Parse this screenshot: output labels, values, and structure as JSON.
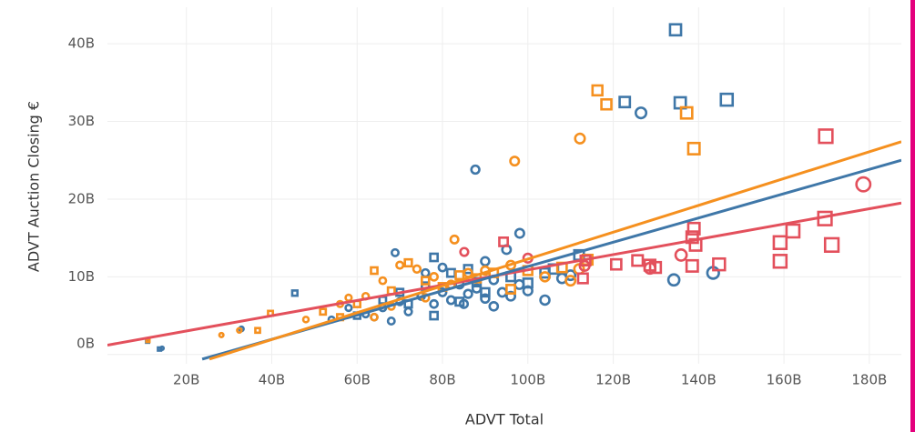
{
  "chart_data": {
    "type": "scatter",
    "x_label": "ADVT Total",
    "y_label": "ADVT Auction Closing €",
    "xlim": [
      1.5,
      187.5
    ],
    "ylim": [
      -1.2,
      44.7
    ],
    "xticks": [
      {
        "value": 20,
        "label": "20B"
      },
      {
        "value": 40,
        "label": "40B"
      },
      {
        "value": 60,
        "label": "60B"
      },
      {
        "value": 80,
        "label": "80B"
      },
      {
        "value": 100,
        "label": "100B"
      },
      {
        "value": 120,
        "label": "120B"
      },
      {
        "value": 140,
        "label": "140B"
      },
      {
        "value": 160,
        "label": "160B"
      },
      {
        "value": 180,
        "label": "180B"
      }
    ],
    "yticks": [
      {
        "value": 0,
        "label": "0B"
      },
      {
        "value": 10,
        "label": "10B"
      },
      {
        "value": 20,
        "label": "20B"
      },
      {
        "value": 30,
        "label": "30B"
      },
      {
        "value": 40,
        "label": "40B"
      }
    ],
    "grid": true,
    "series": [
      {
        "color": "#3f77a8",
        "marker": "circle",
        "values": [
          [
            126.5,
            31.1
          ],
          [
            87.7,
            23.8
          ],
          [
            98.1,
            15.6
          ],
          [
            68.9,
            13.1
          ],
          [
            134.2,
            9.6
          ],
          [
            143.4,
            10.5
          ],
          [
            14.3,
            0.8
          ],
          [
            32.9,
            3.3
          ],
          [
            62,
            5.2
          ],
          [
            66,
            6
          ],
          [
            70,
            6.8
          ],
          [
            72,
            5.5
          ],
          [
            75,
            7.5
          ],
          [
            78,
            6.5
          ],
          [
            80,
            8
          ],
          [
            82,
            7
          ],
          [
            84,
            9
          ],
          [
            86,
            7.8
          ],
          [
            88,
            8.5
          ],
          [
            90,
            7.2
          ],
          [
            92,
            9.6
          ],
          [
            94,
            8
          ],
          [
            96,
            7.5
          ],
          [
            98,
            9
          ],
          [
            100,
            8.2
          ],
          [
            104,
            7
          ],
          [
            108,
            9.8
          ],
          [
            110,
            10.2
          ],
          [
            64,
            4.8
          ],
          [
            58,
            6
          ],
          [
            54,
            4.5
          ],
          [
            76,
            10.5
          ],
          [
            80,
            11.2
          ],
          [
            90,
            12
          ],
          [
            95,
            13.5
          ],
          [
            68,
            4.3
          ],
          [
            85,
            6.5
          ],
          [
            92,
            6.2
          ]
        ]
      },
      {
        "color": "#3f77a8",
        "marker": "square",
        "values": [
          [
            134.6,
            41.8
          ],
          [
            122.7,
            32.5
          ],
          [
            135.7,
            32.4
          ],
          [
            146.6,
            32.8
          ],
          [
            10.9,
            1.7
          ],
          [
            13.7,
            0.7
          ],
          [
            45.4,
            7.9
          ],
          [
            60,
            5
          ],
          [
            66,
            7
          ],
          [
            72,
            6.5
          ],
          [
            76,
            8.8
          ],
          [
            78,
            12.5
          ],
          [
            82,
            10.5
          ],
          [
            86,
            11
          ],
          [
            88,
            9.3
          ],
          [
            90,
            8
          ],
          [
            96,
            10
          ],
          [
            100,
            9.2
          ],
          [
            106,
            11
          ],
          [
            112,
            12.8
          ],
          [
            104,
            10.5
          ],
          [
            78,
            5
          ],
          [
            70,
            8
          ],
          [
            84,
            6.8
          ]
        ]
      },
      {
        "color": "#f5901f",
        "marker": "circle",
        "values": [
          [
            96.9,
            24.9
          ],
          [
            112.2,
            27.8
          ],
          [
            82.8,
            14.8
          ],
          [
            28.2,
            2.5
          ],
          [
            32.4,
            3.1
          ],
          [
            48,
            4.5
          ],
          [
            56,
            6.5
          ],
          [
            62,
            7.5
          ],
          [
            64,
            4.8
          ],
          [
            66,
            9.5
          ],
          [
            70,
            11.5
          ],
          [
            74,
            11
          ],
          [
            78,
            10
          ],
          [
            82,
            9
          ],
          [
            86,
            10.5
          ],
          [
            90,
            10.8
          ],
          [
            96,
            11.5
          ],
          [
            104,
            10
          ],
          [
            110,
            9.5
          ],
          [
            112,
            11
          ],
          [
            68,
            6.2
          ],
          [
            76,
            7.3
          ],
          [
            58,
            7.3
          ]
        ]
      },
      {
        "color": "#f5901f",
        "marker": "square",
        "values": [
          [
            116.3,
            34
          ],
          [
            118.4,
            32.2
          ],
          [
            137.2,
            31.1
          ],
          [
            138.9,
            26.5
          ],
          [
            11,
            1.8
          ],
          [
            36.7,
            3.1
          ],
          [
            39.7,
            5.3
          ],
          [
            52,
            5.5
          ],
          [
            60,
            6.5
          ],
          [
            64,
            10.8
          ],
          [
            68,
            8.2
          ],
          [
            72,
            11.8
          ],
          [
            76,
            9.5
          ],
          [
            80,
            8.7
          ],
          [
            84,
            10.2
          ],
          [
            88,
            9.8
          ],
          [
            92,
            10.5
          ],
          [
            100,
            10.8
          ],
          [
            108,
            11.2
          ],
          [
            114,
            12.2
          ],
          [
            96,
            8.4
          ],
          [
            56,
            4.8
          ]
        ]
      },
      {
        "color": "#e3505c",
        "marker": "circle",
        "values": [
          [
            178.6,
            21.9
          ],
          [
            135.9,
            12.8
          ],
          [
            128.6,
            11.1
          ],
          [
            113.3,
            11.4
          ],
          [
            100,
            12.4
          ],
          [
            85.1,
            13.2
          ]
        ]
      },
      {
        "color": "#e3505c",
        "marker": "square",
        "values": [
          [
            169.8,
            28.1
          ],
          [
            169.6,
            17.5
          ],
          [
            171.2,
            14.1
          ],
          [
            162.1,
            15.9
          ],
          [
            159.1,
            14.4
          ],
          [
            159.1,
            12
          ],
          [
            138.9,
            16.2
          ],
          [
            138.5,
            15.1
          ],
          [
            139.3,
            14.1
          ],
          [
            138.5,
            11.4
          ],
          [
            144.8,
            11.6
          ],
          [
            120.7,
            11.6
          ],
          [
            125.7,
            12.1
          ],
          [
            128.6,
            11.5
          ],
          [
            129.9,
            11.2
          ],
          [
            112.9,
            9.8
          ],
          [
            113.5,
            12.1
          ],
          [
            94.3,
            14.5
          ]
        ]
      }
    ],
    "trend_lines": [
      {
        "color": "#e3505c",
        "x": [
          1.5,
          187.5
        ],
        "y": [
          1.2,
          19.5
        ]
      },
      {
        "color": "#3f77a8",
        "x": [
          23.7,
          187.5
        ],
        "y": [
          -0.6,
          25
        ]
      },
      {
        "color": "#f5901f",
        "x": [
          25.4,
          187.5
        ],
        "y": [
          -0.6,
          27.4
        ]
      }
    ]
  }
}
